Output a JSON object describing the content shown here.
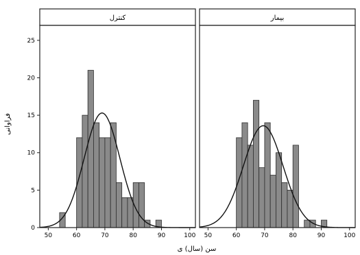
{
  "chart_data": {
    "type": "bar",
    "subtype": "histogram-with-normal-curve",
    "ylabel": "فراوانی",
    "xlabel": "سن (سال) ی",
    "x_ticks": [
      50,
      60,
      70,
      80,
      90,
      100
    ],
    "y_ticks": [
      0,
      5,
      10,
      15,
      20,
      25
    ],
    "xlim": [
      47,
      102
    ],
    "ylim": [
      0,
      27
    ],
    "bin_width": 2,
    "grid": false,
    "legend": "none",
    "colors": {
      "bar_fill": "#8a8a8a",
      "bar_stroke": "#2b2b2b",
      "curve": "#111111",
      "frame": "#222222"
    },
    "panels": [
      {
        "title": "کنترل",
        "bins": [
          {
            "x0": 54,
            "count": 2
          },
          {
            "x0": 60,
            "count": 12
          },
          {
            "x0": 62,
            "count": 15
          },
          {
            "x0": 64,
            "count": 21
          },
          {
            "x0": 66,
            "count": 14
          },
          {
            "x0": 68,
            "count": 12
          },
          {
            "x0": 70,
            "count": 12
          },
          {
            "x0": 72,
            "count": 14
          },
          {
            "x0": 74,
            "count": 6
          },
          {
            "x0": 76,
            "count": 4
          },
          {
            "x0": 78,
            "count": 4
          },
          {
            "x0": 80,
            "count": 6
          },
          {
            "x0": 82,
            "count": 6
          },
          {
            "x0": 84,
            "count": 1
          },
          {
            "x0": 88,
            "count": 1
          }
        ],
        "normal_curve": {
          "mean": 69,
          "sd": 6.3,
          "peak": 15.3
        }
      },
      {
        "title": "بیمار",
        "bins": [
          {
            "x0": 60,
            "count": 12
          },
          {
            "x0": 62,
            "count": 14
          },
          {
            "x0": 64,
            "count": 11
          },
          {
            "x0": 66,
            "count": 17
          },
          {
            "x0": 68,
            "count": 8
          },
          {
            "x0": 70,
            "count": 14
          },
          {
            "x0": 72,
            "count": 7
          },
          {
            "x0": 74,
            "count": 10
          },
          {
            "x0": 76,
            "count": 6
          },
          {
            "x0": 78,
            "count": 5
          },
          {
            "x0": 80,
            "count": 11
          },
          {
            "x0": 84,
            "count": 1
          },
          {
            "x0": 86,
            "count": 1
          },
          {
            "x0": 90,
            "count": 1
          }
        ],
        "normal_curve": {
          "mean": 69.5,
          "sd": 7,
          "peak": 13.6
        }
      }
    ]
  }
}
